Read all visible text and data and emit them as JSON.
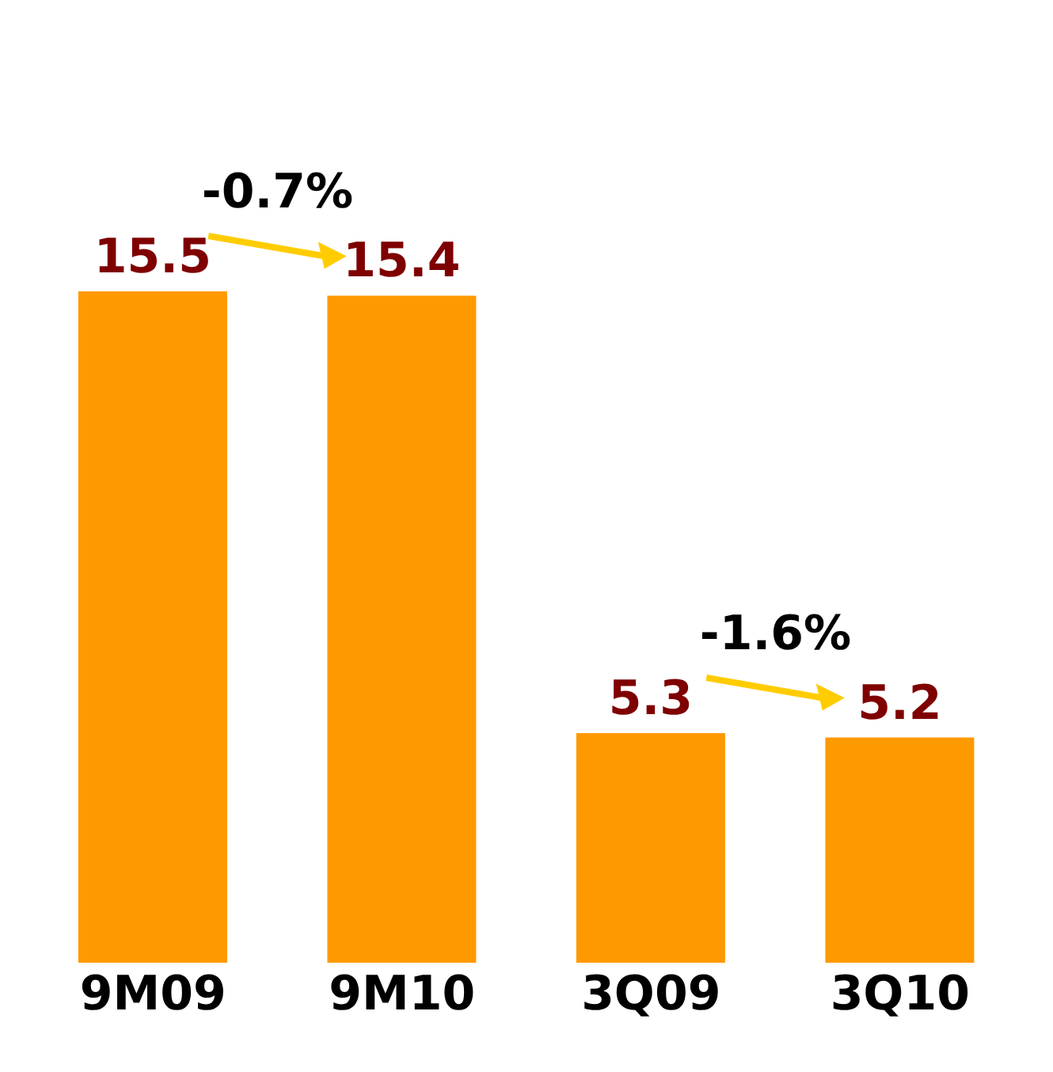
{
  "chart_data": {
    "type": "bar",
    "categories": [
      "9M09",
      "9M10",
      "3Q09",
      "3Q10"
    ],
    "values": [
      15.5,
      15.4,
      5.3,
      5.2
    ],
    "color": "#ff9900",
    "data_labels": true,
    "annotations": [
      "-0.7%",
      "-1.6%"
    ]
  }
}
